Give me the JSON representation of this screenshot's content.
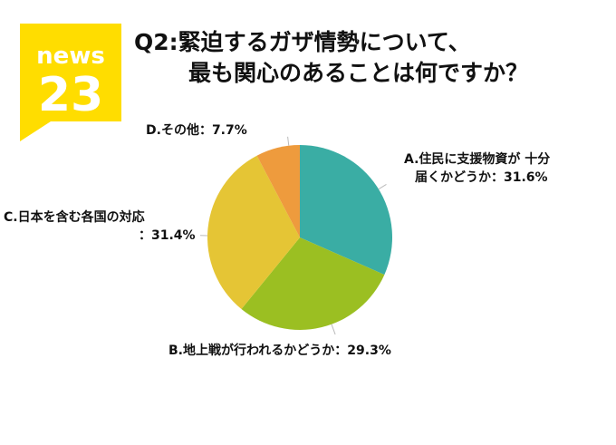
{
  "logo": {
    "line1": "news",
    "line2": "23",
    "color": "#FFDD00"
  },
  "title": {
    "line1": "Q2:緊迫するガザ情勢について、",
    "line2": "最も関心のあることは何ですか？"
  },
  "labels": {
    "a": {
      "line1": "A.住民に支援物資が 十分",
      "line2": "届くかどうか：31.6%"
    },
    "b": {
      "line1": "B.地上戦が行われるかどうか：29.3%"
    },
    "c": {
      "line1": "C.日本を含む各国の対応",
      "line2": "：31.4%"
    },
    "d": {
      "line1": "D.その他：7.7%"
    }
  },
  "chart_data": {
    "type": "pie",
    "categories": [
      "A",
      "B",
      "C",
      "D"
    ],
    "values": [
      31.6,
      29.3,
      31.4,
      7.7
    ],
    "colors": [
      "#3AADA4",
      "#9BBF22",
      "#E5C535",
      "#EE9B3D"
    ],
    "start": "12 o'clock",
    "direction": "clockwise"
  }
}
